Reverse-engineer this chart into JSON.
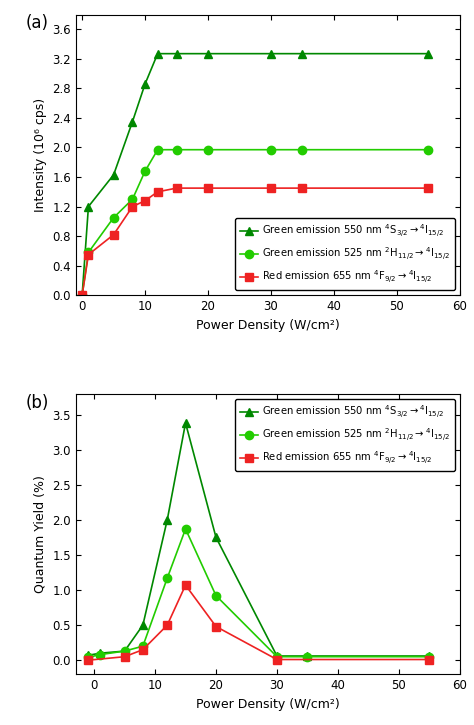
{
  "panel_a": {
    "green550_x": [
      0,
      1,
      5,
      8,
      10,
      12,
      15,
      20,
      30,
      35,
      55
    ],
    "green550_y": [
      0.0,
      1.2,
      1.63,
      2.35,
      2.86,
      3.27,
      3.27,
      3.27,
      3.27,
      3.27,
      3.27
    ],
    "green525_x": [
      0,
      1,
      5,
      8,
      10,
      12,
      15,
      20,
      30,
      35,
      55
    ],
    "green525_y": [
      0.0,
      0.58,
      1.05,
      1.3,
      1.68,
      1.97,
      1.97,
      1.97,
      1.97,
      1.97,
      1.97
    ],
    "red655_x": [
      0,
      1,
      5,
      8,
      10,
      12,
      15,
      20,
      30,
      35,
      55
    ],
    "red655_y": [
      0.0,
      0.55,
      0.82,
      1.2,
      1.28,
      1.4,
      1.45,
      1.45,
      1.45,
      1.45,
      1.45
    ],
    "ylabel": "Intensity (10⁶ cps)",
    "xlabel": "Power Density (W/cm²)",
    "ylim": [
      0.0,
      3.8
    ],
    "xlim": [
      -1,
      60
    ],
    "yticks": [
      0.0,
      0.4,
      0.8,
      1.2,
      1.6,
      2.0,
      2.4,
      2.8,
      3.2,
      3.6
    ],
    "xticks": [
      0,
      10,
      20,
      30,
      40,
      50,
      60
    ],
    "label": "(a)"
  },
  "panel_b": {
    "green550_x": [
      -1,
      1,
      5,
      8,
      12,
      15,
      20,
      30,
      35,
      55
    ],
    "green550_y": [
      0.07,
      0.1,
      0.13,
      0.5,
      2.0,
      3.38,
      1.75,
      0.06,
      0.06,
      0.06
    ],
    "green525_x": [
      -1,
      1,
      5,
      8,
      12,
      15,
      20,
      30,
      35,
      55
    ],
    "green525_y": [
      0.04,
      0.08,
      0.13,
      0.2,
      1.17,
      1.87,
      0.92,
      0.05,
      0.05,
      0.05
    ],
    "red655_x": [
      -1,
      5,
      8,
      12,
      15,
      20,
      30,
      55
    ],
    "red655_y": [
      0.0,
      0.05,
      0.15,
      0.5,
      1.07,
      0.48,
      0.01,
      0.01
    ],
    "ylabel": "Quantum Yield (%)",
    "xlabel": "Power Density (W/cm²)",
    "ylim": [
      -0.2,
      3.8
    ],
    "xlim": [
      -3,
      60
    ],
    "yticks": [
      0.0,
      0.5,
      1.0,
      1.5,
      2.0,
      2.5,
      3.0,
      3.5
    ],
    "xticks": [
      0,
      10,
      20,
      30,
      40,
      50,
      60
    ],
    "label": "(b)"
  },
  "dark_green": "#008800",
  "light_green": "#22CC00",
  "red_color": "#EE2222",
  "legend_green550": "Green emission 550 nm $^4$S$_{3/2}$$\\rightarrow$$^4$I$_{15/2}$",
  "legend_green525": "Green emission 525 nm $^2$H$_{11/2}$$\\rightarrow$$^4$I$_{15/2}$",
  "legend_red655": "Red emission 655 nm $^4$F$_{9/2}$$\\rightarrow$$^4$I$_{15/2}$"
}
